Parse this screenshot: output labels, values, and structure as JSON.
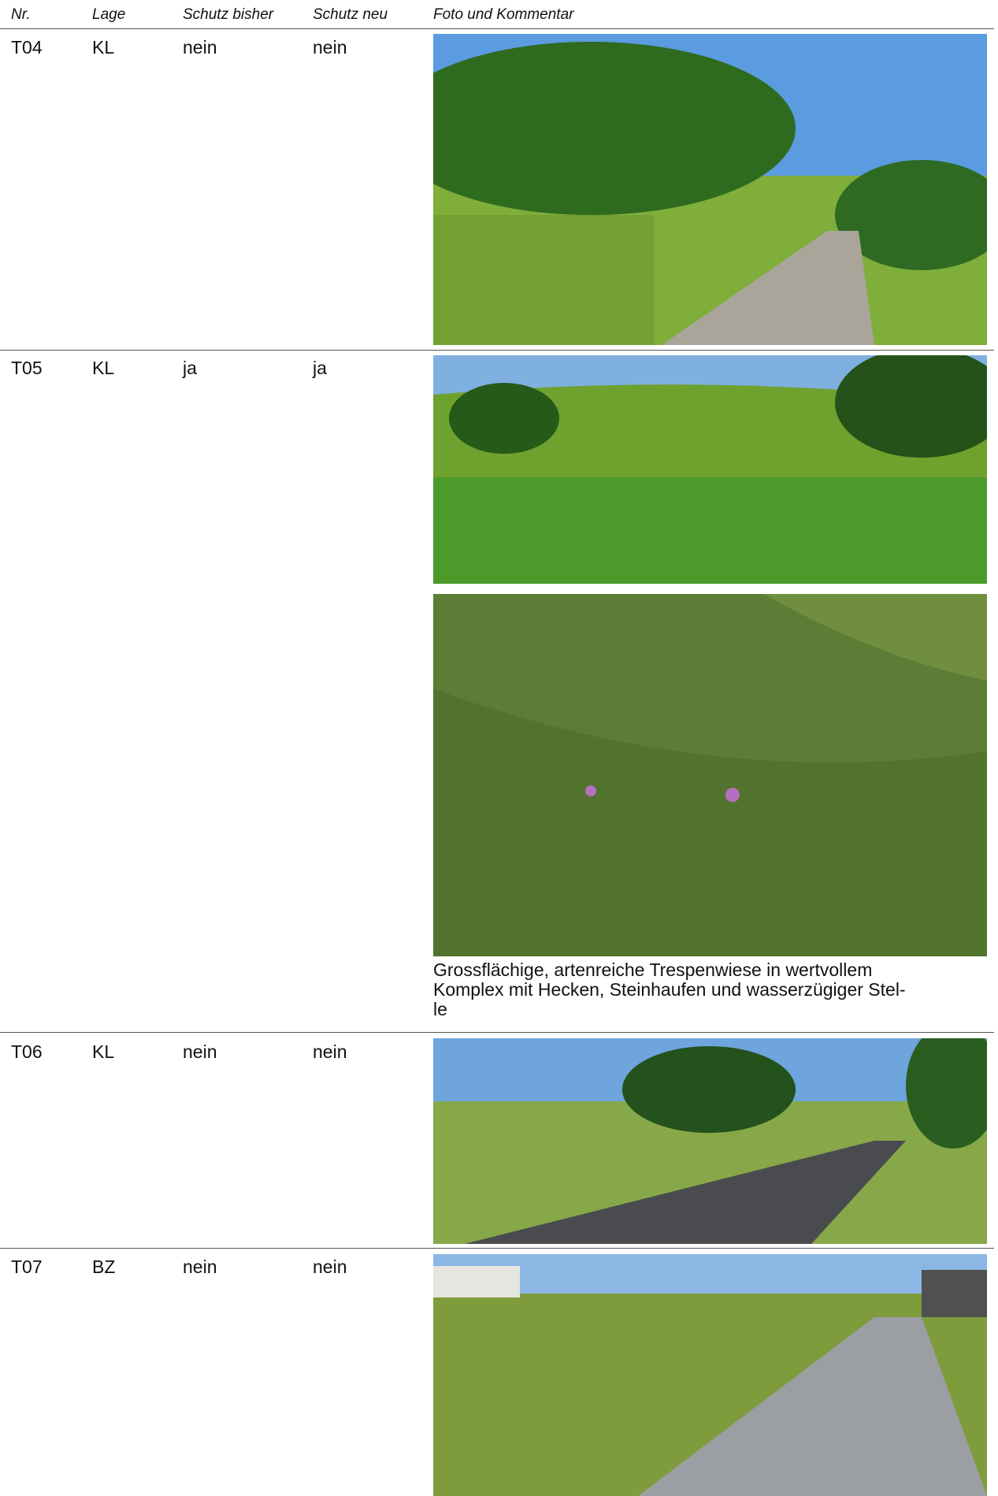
{
  "header": {
    "columns": [
      "Nr.",
      "Lage",
      "Schutz bisher",
      "Schutz neu",
      "Foto und Kommentar"
    ]
  },
  "rows": [
    {
      "nr": "T04",
      "lage": "KL",
      "schutz_bisher": "nein",
      "schutz_neu": "nein"
    },
    {
      "nr": "T05",
      "lage": "KL",
      "schutz_bisher": "ja",
      "schutz_neu": "ja",
      "comment": [
        "Grossflächige, artenreiche Trespenwiese in wertvollem",
        "Komplex mit Hecken, Steinhaufen und wasserzügiger Stel-",
        "le"
      ]
    },
    {
      "nr": "T06",
      "lage": "KL",
      "schutz_bisher": "nein",
      "schutz_neu": "nein"
    },
    {
      "nr": "T07",
      "lage": "BZ",
      "schutz_bisher": "nein",
      "schutz_neu": "nein"
    }
  ]
}
